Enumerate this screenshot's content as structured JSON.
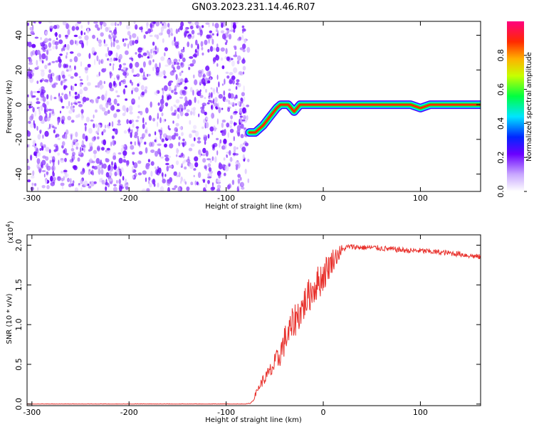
{
  "title": "GN03.2023.231.14.46.R07",
  "chart_data": [
    {
      "type": "heatmap",
      "xlabel": "Height of straight line (km)",
      "ylabel": "Frequency (Hz)",
      "xlim": [
        -305,
        162
      ],
      "ylim": [
        -50,
        48
      ],
      "xticks": [
        -300,
        -200,
        -100,
        0,
        100
      ],
      "yticks": [
        -40,
        -20,
        0,
        20,
        40
      ],
      "noise_region_x": [
        -305,
        -77
      ],
      "ridge": {
        "x": [
          -76,
          -70,
          -62,
          -55,
          -48,
          -44,
          -40,
          -36,
          -30,
          -24,
          -18,
          -12,
          -6,
          0,
          6,
          12,
          30,
          60,
          90,
          100,
          110,
          130,
          162
        ],
        "y": [
          -16,
          -16,
          -12,
          -7,
          -2,
          0,
          0,
          0,
          -4,
          0,
          0,
          0,
          0,
          0,
          0,
          0,
          0,
          0,
          0,
          -2,
          0,
          0,
          0
        ]
      },
      "colorbar": {
        "label": "Normalized spectral amplitude",
        "range": [
          0,
          1
        ],
        "ticks": [
          0.0,
          0.2,
          0.4,
          0.6,
          0.8
        ],
        "tick_labels": [
          "0.0",
          "0.2",
          "0.4",
          "0.6",
          "0.8"
        ]
      }
    },
    {
      "type": "line",
      "xlabel": "Height of straight line (km)",
      "ylabel": "SNR (10 * v/v)",
      "yscale_label": "(x10",
      "yscale_exp": "4",
      "yscale_close": ")",
      "xlim": [
        -305,
        162
      ],
      "ylim": [
        -0.02,
        2.13
      ],
      "xticks": [
        -300,
        -200,
        -100,
        0,
        100
      ],
      "yticks": [
        0.0,
        0.5,
        1.0,
        1.5,
        2.0
      ],
      "ytick_labels": [
        "0.0",
        "0.5",
        "1.0",
        "1.5",
        "2.0"
      ],
      "color": "#e8312c",
      "series": [
        {
          "x": [
            -305,
            -250,
            -200,
            -150,
            -100,
            -80,
            -75,
            -72,
            -70,
            -66,
            -62,
            -58,
            -54,
            -50,
            -46,
            -42,
            -38,
            -34,
            -30,
            -26,
            -22,
            -18,
            -14,
            -10,
            -6,
            -2,
            2,
            6,
            10,
            14,
            18,
            22,
            26,
            30,
            40,
            50,
            60,
            70,
            80,
            90,
            100,
            110,
            120,
            130,
            140,
            150,
            162
          ],
          "y": [
            0.0,
            0.0,
            0.0,
            0.0,
            0.0,
            0.0,
            0.01,
            0.05,
            0.12,
            0.22,
            0.3,
            0.35,
            0.42,
            0.5,
            0.58,
            0.72,
            0.85,
            0.92,
            1.05,
            1.12,
            1.2,
            1.3,
            1.38,
            1.46,
            1.52,
            1.58,
            1.66,
            1.74,
            1.82,
            1.87,
            1.92,
            1.96,
            1.98,
            1.98,
            1.97,
            1.97,
            1.96,
            1.95,
            1.94,
            1.93,
            1.93,
            1.92,
            1.91,
            1.9,
            1.89,
            1.87,
            1.85
          ]
        }
      ]
    }
  ]
}
